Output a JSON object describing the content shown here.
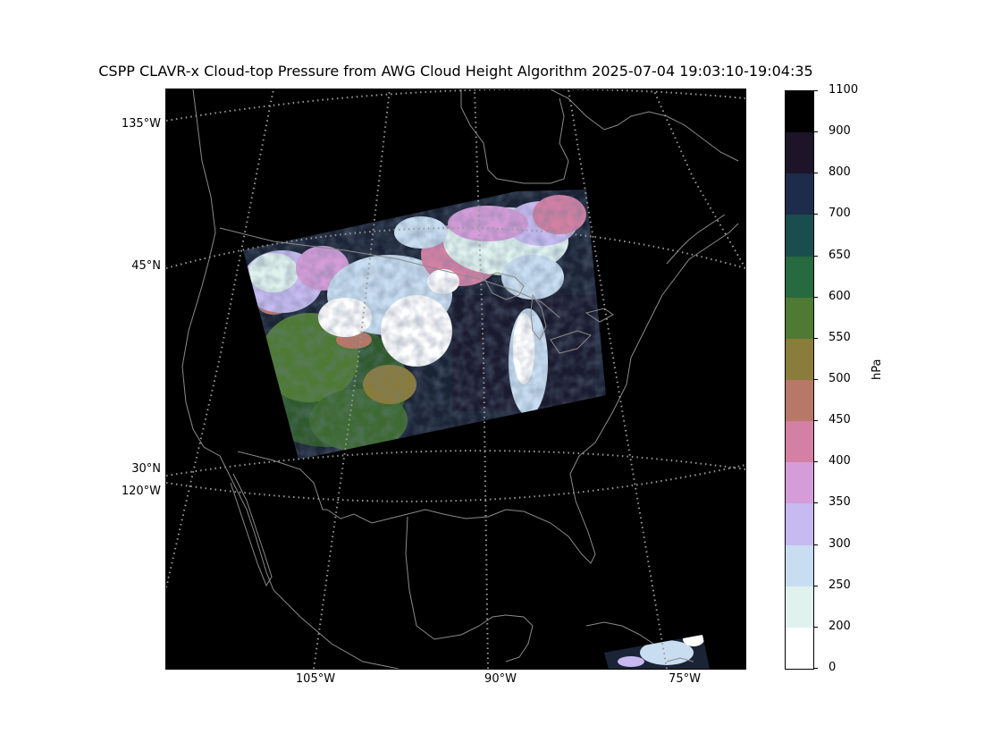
{
  "title": "CSPP CLAVR-x Cloud-top Pressure from AWG Cloud Height Algorithm 2025-07-04 19:03:10-19:04:35",
  "map": {
    "lat_labels": [
      "135°W",
      "45°N",
      "30°N",
      "120°W"
    ],
    "lon_labels": [
      "105°W",
      "90°W",
      "75°W"
    ],
    "background_color": "#000000",
    "coastline_color": "#8a8a8a",
    "gridline_style": "dotted"
  },
  "colorbar": {
    "units": "hPa",
    "tick_labels": [
      "1100",
      "900",
      "800",
      "700",
      "650",
      "600",
      "550",
      "500",
      "450",
      "400",
      "350",
      "300",
      "250",
      "200",
      "0"
    ],
    "colors_top_to_bottom": [
      "#000000",
      "#1e1428",
      "#1c2c4a",
      "#1a4d4d",
      "#276a3f",
      "#4e7a33",
      "#8a7c3a",
      "#b87868",
      "#d480a4",
      "#d49cd8",
      "#c6baf0",
      "#c8ddf0",
      "#dff2ee",
      "#ffffff"
    ]
  }
}
